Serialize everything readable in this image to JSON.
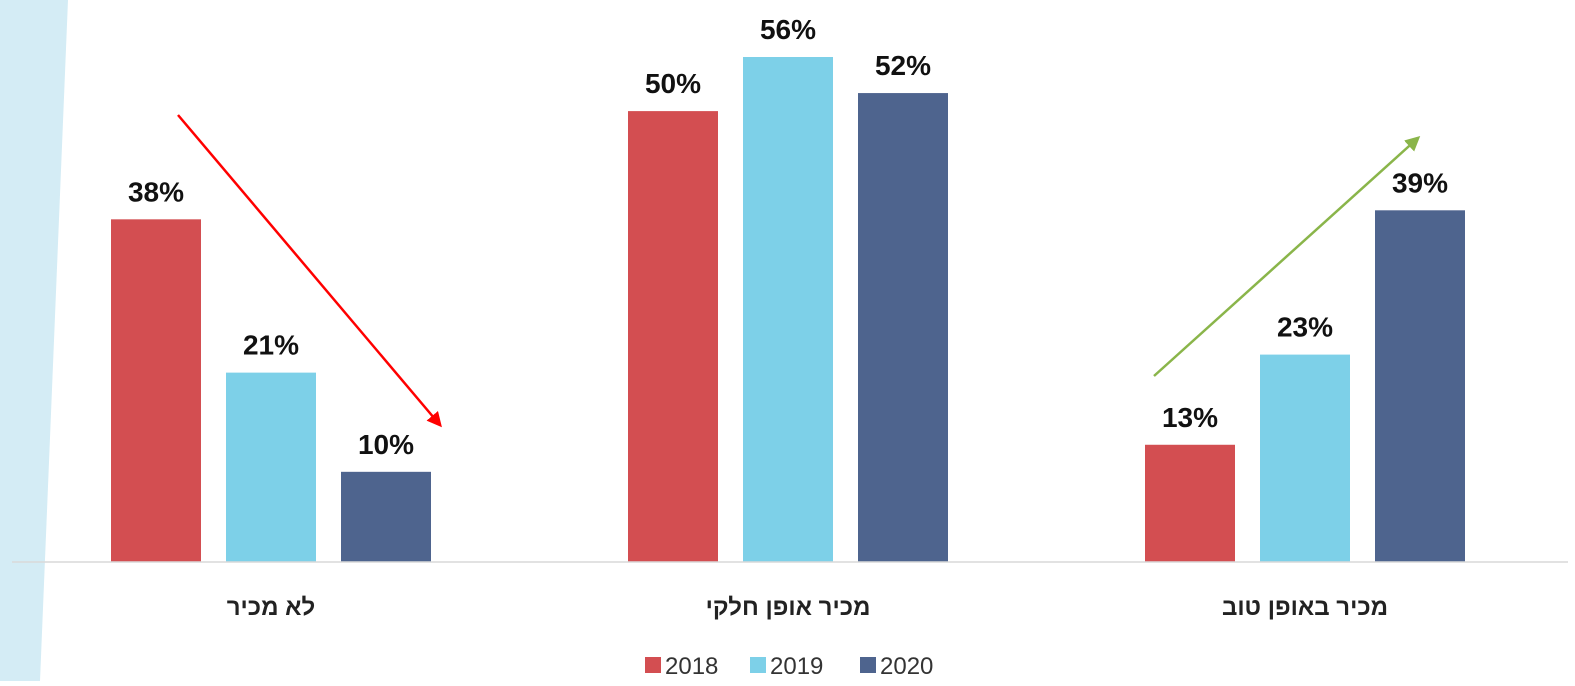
{
  "chart_data": {
    "type": "bar",
    "categories": [
      "לא מכיר",
      "מכיר אופן חלקי",
      "מכיר באופן טוב"
    ],
    "series": [
      {
        "name": "2018",
        "values": [
          38,
          50,
          13
        ],
        "color": "#d34e51"
      },
      {
        "name": "2019",
        "values": [
          21,
          56,
          23
        ],
        "color": "#7dd0e8"
      },
      {
        "name": "2020",
        "values": [
          10,
          52,
          39
        ],
        "color": "#4e648e"
      }
    ],
    "value_suffix": "%",
    "ylim": [
      0,
      60
    ],
    "grid": false,
    "legend_position": "bottom",
    "annotations": [
      {
        "type": "arrow",
        "direction": "down",
        "category": "לא מכיר",
        "color": "#ff0000"
      },
      {
        "type": "arrow",
        "direction": "up",
        "category": "מכיר באופן טוב",
        "color": "#8ab54a"
      }
    ]
  },
  "decoration": {
    "side_band_color": "#d4ecf5"
  }
}
